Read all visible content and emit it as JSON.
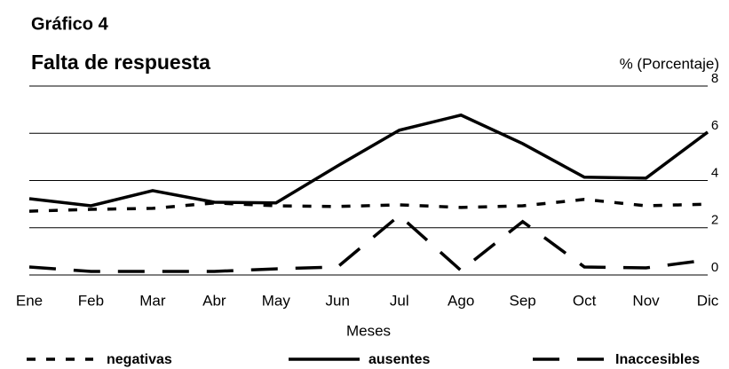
{
  "chart_data": {
    "type": "line",
    "title": "Gráfico 4",
    "subtitle": "Falta de respuesta",
    "y_label": "% (Porcentaje)",
    "x_label": "Meses",
    "categories": [
      "Ene",
      "Feb",
      "Mar",
      "Abr",
      "May",
      "Jun",
      "Jul",
      "Ago",
      "Sep",
      "Oct",
      "Nov",
      "Dic"
    ],
    "series": [
      {
        "name": "negativas",
        "color": "#000000",
        "linestyle": "dashed",
        "values": [
          2.7,
          2.78,
          2.82,
          3.05,
          2.93,
          2.9,
          2.97,
          2.86,
          2.93,
          3.2,
          2.93,
          3.0
        ]
      },
      {
        "name": "ausentes",
        "color": "#000000",
        "linestyle": "solid",
        "values": [
          3.23,
          2.93,
          3.57,
          3.08,
          3.05,
          4.62,
          6.13,
          6.77,
          5.56,
          4.14,
          4.1,
          6.05
        ]
      },
      {
        "name": "Inaccesibles",
        "color": "#000000",
        "linestyle": "longdash",
        "values": [
          0.34,
          0.15,
          0.15,
          0.15,
          0.26,
          0.34,
          2.52,
          0.19,
          2.26,
          0.34,
          0.3,
          0.64
        ]
      }
    ],
    "ylim": [
      0,
      8
    ],
    "yticks": [
      0,
      2,
      4,
      6,
      8
    ],
    "grid": true,
    "legend": "bottom"
  }
}
